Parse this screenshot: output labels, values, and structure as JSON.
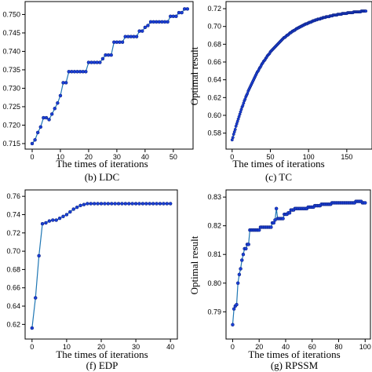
{
  "chart_data": [
    {
      "type": "line",
      "caption": "(b) LDC",
      "xlabel": "The times of iterations",
      "ylabel": "",
      "xlim": [
        -2.5,
        57
      ],
      "ylim": [
        0.7135,
        0.7535
      ],
      "xticks": [
        0,
        10,
        20,
        30,
        40,
        50
      ],
      "yticks": [
        0.715,
        0.72,
        0.725,
        0.73,
        0.735,
        0.74,
        0.745,
        0.75
      ],
      "yfmt": 3,
      "x": [
        0,
        1,
        2,
        3,
        4,
        5,
        6,
        7,
        8,
        9,
        10,
        11,
        12,
        13,
        14,
        15,
        16,
        17,
        18,
        19,
        20,
        21,
        22,
        23,
        24,
        25,
        26,
        27,
        28,
        29,
        30,
        31,
        32,
        33,
        34,
        35,
        36,
        37,
        38,
        39,
        40,
        41,
        42,
        43,
        44,
        45,
        46,
        47,
        48,
        49,
        50,
        51,
        52,
        53,
        54,
        55
      ],
      "y": [
        0.715,
        0.716,
        0.718,
        0.7195,
        0.722,
        0.722,
        0.7215,
        0.723,
        0.7245,
        0.726,
        0.728,
        0.7315,
        0.7315,
        0.7345,
        0.7345,
        0.7345,
        0.7345,
        0.7345,
        0.7345,
        0.7345,
        0.737,
        0.737,
        0.737,
        0.737,
        0.737,
        0.738,
        0.739,
        0.739,
        0.739,
        0.7425,
        0.7425,
        0.7425,
        0.7425,
        0.744,
        0.744,
        0.744,
        0.744,
        0.744,
        0.7455,
        0.7455,
        0.7465,
        0.747,
        0.748,
        0.748,
        0.748,
        0.748,
        0.748,
        0.748,
        0.748,
        0.7495,
        0.7495,
        0.7495,
        0.7505,
        0.7505,
        0.7515,
        0.7515
      ]
    },
    {
      "type": "line",
      "caption": "(c) TC",
      "xlabel": "The times of iterations",
      "ylabel": "Optimal result",
      "xlim": [
        -8,
        183
      ],
      "ylim": [
        0.562,
        0.728
      ],
      "xticks": [
        0,
        50,
        100,
        150
      ],
      "yticks": [
        0.58,
        0.6,
        0.62,
        0.64,
        0.66,
        0.68,
        0.7,
        0.72
      ],
      "yfmt": 2,
      "curve": {
        "start": 0.572,
        "end": 0.7205,
        "rate": 0.022,
        "n": 175,
        "steps": 0.0009
      }
    },
    {
      "type": "line",
      "caption": "(f) EDP",
      "xlabel": "The times of iterations",
      "ylabel": "",
      "xlim": [
        -2,
        42
      ],
      "ylim": [
        0.604,
        0.767
      ],
      "xticks": [
        0,
        10,
        20,
        30,
        40
      ],
      "yticks": [
        0.62,
        0.64,
        0.66,
        0.68,
        0.7,
        0.72,
        0.74,
        0.76
      ],
      "yfmt": 2,
      "x": [
        0,
        1,
        2,
        3,
        4,
        5,
        6,
        7,
        8,
        9,
        10,
        11,
        12,
        13,
        14,
        15,
        16,
        17,
        18,
        19,
        20,
        21,
        22,
        23,
        24,
        25,
        26,
        27,
        28,
        29,
        30,
        31,
        32,
        33,
        34,
        35,
        36,
        37,
        38,
        39,
        40
      ],
      "y": [
        0.616,
        0.649,
        0.695,
        0.73,
        0.731,
        0.733,
        0.734,
        0.734,
        0.736,
        0.738,
        0.74,
        0.743,
        0.746,
        0.748,
        0.75,
        0.751,
        0.752,
        0.752,
        0.752,
        0.752,
        0.752,
        0.752,
        0.752,
        0.752,
        0.752,
        0.752,
        0.752,
        0.752,
        0.752,
        0.752,
        0.752,
        0.752,
        0.752,
        0.752,
        0.752,
        0.752,
        0.752,
        0.752,
        0.752,
        0.752,
        0.752
      ]
    },
    {
      "type": "line",
      "caption": "(g) RPSSM",
      "xlabel": "The times of iterations",
      "ylabel": "Optimal result",
      "xlim": [
        -5,
        104
      ],
      "ylim": [
        0.7805,
        0.8325
      ],
      "xticks": [
        0,
        20,
        40,
        60,
        80,
        100
      ],
      "yticks": [
        0.79,
        0.8,
        0.81,
        0.82,
        0.83
      ],
      "yfmt": 2,
      "points": [
        [
          0,
          0.7855
        ],
        [
          1,
          0.791
        ],
        [
          2,
          0.792
        ],
        [
          3,
          0.7925
        ],
        [
          4,
          0.8
        ],
        [
          5,
          0.803
        ],
        [
          6,
          0.805
        ],
        [
          7,
          0.808
        ],
        [
          8,
          0.81
        ],
        [
          9,
          0.812
        ],
        [
          10,
          0.812
        ],
        [
          11,
          0.8135
        ],
        [
          12,
          0.8135
        ],
        [
          13,
          0.8185
        ],
        [
          20,
          0.8185
        ],
        [
          21,
          0.8195
        ],
        [
          29,
          0.8195
        ],
        [
          30,
          0.821
        ],
        [
          32,
          0.822
        ],
        [
          33,
          0.826
        ],
        [
          34,
          0.8225
        ],
        [
          38,
          0.8225
        ],
        [
          39,
          0.824
        ],
        [
          42,
          0.8245
        ],
        [
          44,
          0.8255
        ],
        [
          47,
          0.826
        ],
        [
          56,
          0.826
        ],
        [
          57,
          0.8265
        ],
        [
          61,
          0.8265
        ],
        [
          62,
          0.827
        ],
        [
          64,
          0.827
        ],
        [
          67,
          0.8275
        ],
        [
          74,
          0.8275
        ],
        [
          75,
          0.828
        ],
        [
          92,
          0.828
        ],
        [
          93,
          0.8285
        ],
        [
          97,
          0.8285
        ],
        [
          98,
          0.828
        ],
        [
          100,
          0.828
        ]
      ]
    }
  ]
}
